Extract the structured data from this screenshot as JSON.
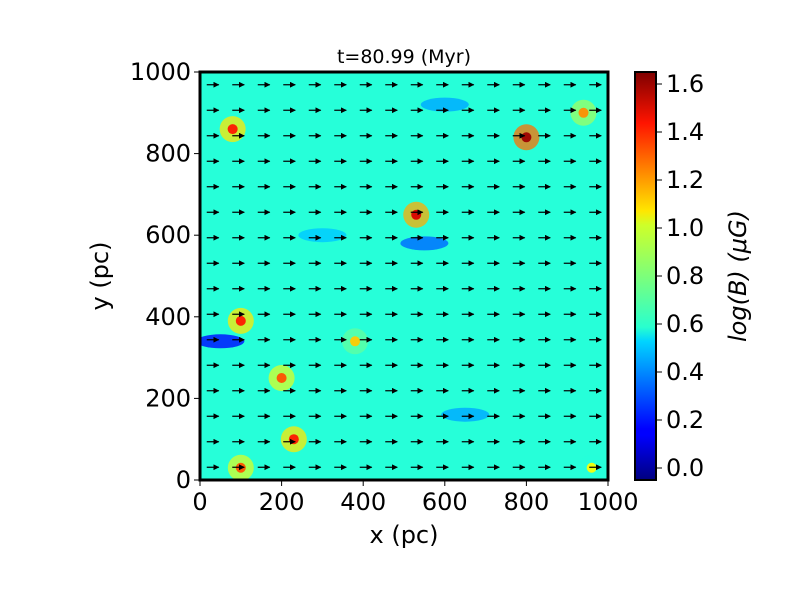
{
  "chart_data": {
    "type": "heatmap",
    "title": "t=80.99 (Myr)",
    "xlabel": "x (pc)",
    "ylabel": "y (pc)",
    "xlim": [
      0,
      1000
    ],
    "ylim": [
      0,
      1000
    ],
    "xticks": [
      "0",
      "200",
      "400",
      "600",
      "800",
      "1000"
    ],
    "yticks": [
      "0",
      "200",
      "400",
      "600",
      "800",
      "1000"
    ],
    "colorbar": {
      "label": "log(B) (μG)",
      "range": [
        -0.05,
        1.65
      ],
      "ticks": [
        "0.0",
        "0.2",
        "0.4",
        "0.6",
        "0.8",
        "1.0",
        "1.2",
        "1.4",
        "1.6"
      ],
      "colormap": "jet"
    },
    "field_summary": {
      "background_value": 0.65,
      "hotspots": [
        {
          "x": 80,
          "y": 860,
          "value": 1.4
        },
        {
          "x": 800,
          "y": 840,
          "value": 1.6
        },
        {
          "x": 530,
          "y": 650,
          "value": 1.5
        },
        {
          "x": 100,
          "y": 390,
          "value": 1.4
        },
        {
          "x": 200,
          "y": 250,
          "value": 1.3
        },
        {
          "x": 230,
          "y": 100,
          "value": 1.4
        },
        {
          "x": 100,
          "y": 30,
          "value": 1.3
        },
        {
          "x": 940,
          "y": 900,
          "value": 1.2
        },
        {
          "x": 380,
          "y": 340,
          "value": 1.1
        },
        {
          "x": 960,
          "y": 30,
          "value": 1.0
        }
      ],
      "lows": [
        {
          "x": 50,
          "y": 340,
          "value": 0.2
        },
        {
          "x": 550,
          "y": 580,
          "value": 0.35
        },
        {
          "x": 600,
          "y": 920,
          "value": 0.45
        },
        {
          "x": 650,
          "y": 160,
          "value": 0.45
        },
        {
          "x": 300,
          "y": 600,
          "value": 0.5
        }
      ]
    },
    "vector_field": {
      "dominant_direction": "+x",
      "grid_spacing_pc": 62.5
    }
  }
}
